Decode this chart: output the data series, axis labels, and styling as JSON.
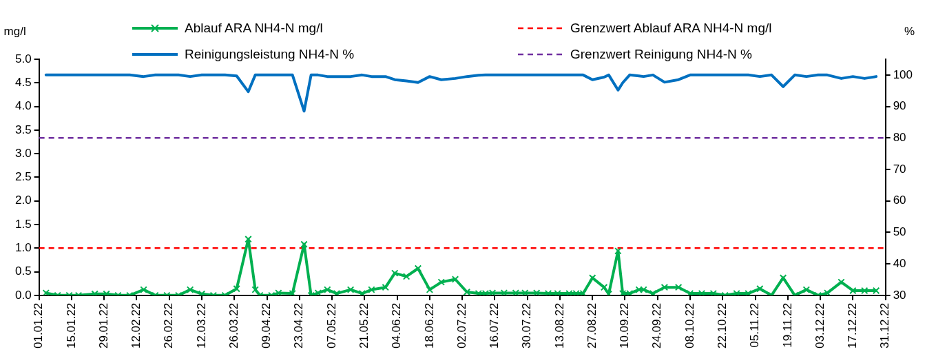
{
  "chart_data": {
    "type": "line",
    "ylabel": "mg/l",
    "y2label": "%",
    "x": [
      "--01-04",
      "--01-09",
      "--01-14",
      "--01-18",
      "--01-25",
      "--01-30",
      "--02-04",
      "--02-09",
      "--02-15",
      "--02-20",
      "--02-25",
      "--03-02",
      "--03-07",
      "--03-12",
      "--03-17",
      "--03-22",
      "--03-27",
      "--04-01",
      "--04-04",
      "--04-06",
      "--04-11",
      "--04-14",
      "--04-20",
      "--04-25",
      "--04-28",
      "--05-01",
      "--05-05",
      "--05-09",
      "--05-15",
      "--05-20",
      "--05-24",
      "--05-30",
      "--06-03",
      "--06-08",
      "--06-13",
      "--06-18",
      "--06-23",
      "--06-29",
      "--07-04",
      "--07-09",
      "--07-12",
      "--07-15",
      "--07-20",
      "--07-25",
      "--07-29",
      "--08-03",
      "--08-08",
      "--08-12",
      "--08-17",
      "--08-20",
      "--08-23",
      "--08-27",
      "--09-01",
      "--09-03",
      "--09-07",
      "--09-09",
      "--09-12",
      "--09-16",
      "--09-18",
      "--09-22",
      "--09-27",
      "--10-03",
      "--10-08",
      "--10-13",
      "--10-18",
      "--10-23",
      "--10-28",
      "--11-02",
      "--11-07",
      "--11-12",
      "--11-17",
      "--11-22",
      "--11-27",
      "--12-02",
      "--12-06",
      "--12-12",
      "--12-17",
      "--12-22",
      "--12-27"
    ],
    "series": [
      {
        "name": "Ablauf ARA NH4-N mg/l",
        "color": "#00b050",
        "marker": "cross",
        "values": [
          0.05,
          0.0,
          0.0,
          0.0,
          0.03,
          0.03,
          0.0,
          0.0,
          0.12,
          0.0,
          0.0,
          0.0,
          0.12,
          0.03,
          0.0,
          0.0,
          0.14,
          1.19,
          0.12,
          0.0,
          0.0,
          0.05,
          0.04,
          1.08,
          0.0,
          0.05,
          0.12,
          0.04,
          0.12,
          0.04,
          0.12,
          0.17,
          0.47,
          0.4,
          0.57,
          0.12,
          0.28,
          0.34,
          0.07,
          0.04,
          0.04,
          0.05,
          0.05,
          0.05,
          0.05,
          0.05,
          0.04,
          0.04,
          0.04,
          0.04,
          0.04,
          0.37,
          0.17,
          0.03,
          0.94,
          0.04,
          0.04,
          0.12,
          0.12,
          0.04,
          0.17,
          0.17,
          0.04,
          0.04,
          0.04,
          0.0,
          0.04,
          0.04,
          0.14,
          0.0,
          0.37,
          0.0,
          0.12,
          0.0,
          0.05,
          0.28,
          0.1,
          0.1,
          0.1
        ]
      },
      {
        "name": "Reinigungsleistung NH4-N %",
        "color": "#0070c0",
        "axis": "y2",
        "marker": "none",
        "values": [
          100,
          100,
          100,
          100,
          100,
          100,
          100,
          100,
          99.5,
          100,
          100,
          100,
          99.5,
          100,
          100,
          100,
          99.7,
          94.7,
          100,
          100,
          100,
          100,
          100,
          88.5,
          100,
          100,
          99.5,
          99.5,
          99.5,
          100,
          99.5,
          99.5,
          98.5,
          98.1,
          97.6,
          99.5,
          98.5,
          98.9,
          99.5,
          99.9,
          100,
          100,
          100,
          100,
          100,
          100,
          100,
          100,
          100,
          100,
          100,
          98.5,
          99.3,
          100,
          95.2,
          97.5,
          100,
          99.7,
          99.5,
          100,
          97.7,
          98.5,
          100,
          100,
          100,
          100,
          100,
          100,
          99.5,
          100,
          96.3,
          100,
          99.5,
          100,
          100,
          98.9,
          99.5,
          98.9,
          99.5
        ]
      }
    ],
    "xlim": [
      "--01-01",
      "--12-31"
    ],
    "xticks": [
      {
        "value": "--01-01",
        "label": "01.01.22"
      },
      {
        "value": "--01-15",
        "label": "15.01.22"
      },
      {
        "value": "--01-29",
        "label": "29.01.22"
      },
      {
        "value": "--02-12",
        "label": "12.02.22"
      },
      {
        "value": "--02-26",
        "label": "26.02.22"
      },
      {
        "value": "--03-12",
        "label": "12.03.22"
      },
      {
        "value": "--03-26",
        "label": "26.03.22"
      },
      {
        "value": "--04-09",
        "label": "09.04.22"
      },
      {
        "value": "--04-23",
        "label": "23.04.22"
      },
      {
        "value": "--05-07",
        "label": "07.05.22"
      },
      {
        "value": "--05-21",
        "label": "21.05.22"
      },
      {
        "value": "--06-04",
        "label": "04.06.22"
      },
      {
        "value": "--06-18",
        "label": "18.06.22"
      },
      {
        "value": "--07-02",
        "label": "02.07.22"
      },
      {
        "value": "--07-16",
        "label": "16.07.22"
      },
      {
        "value": "--07-30",
        "label": "30.07.22"
      },
      {
        "value": "--08-13",
        "label": "13.08.22"
      },
      {
        "value": "--08-27",
        "label": "27.08.22"
      },
      {
        "value": "--09-10",
        "label": "10.09.22"
      },
      {
        "value": "--09-24",
        "label": "24.09.22"
      },
      {
        "value": "--10-08",
        "label": "08.10.22"
      },
      {
        "value": "--10-22",
        "label": "22.10.22"
      },
      {
        "value": "--11-05",
        "label": "05.11.22"
      },
      {
        "value": "--11-19",
        "label": "19.11.22"
      },
      {
        "value": "--12-03",
        "label": "03.12.22"
      },
      {
        "value": "--12-17",
        "label": "17.12.22"
      },
      {
        "value": "--12-31",
        "label": "31.12.22"
      }
    ],
    "ylim": [
      0,
      5
    ],
    "yticks": [
      {
        "value": 0,
        "label": "0.0"
      },
      {
        "value": 0.5,
        "label": "0.5"
      },
      {
        "value": 1,
        "label": "1.0"
      },
      {
        "value": 1.5,
        "label": "1.5"
      },
      {
        "value": 2,
        "label": "2.0"
      },
      {
        "value": 2.5,
        "label": "2.5"
      },
      {
        "value": 3,
        "label": "3.0"
      },
      {
        "value": 3.5,
        "label": "3.5"
      },
      {
        "value": 4,
        "label": "4.0"
      },
      {
        "value": 4.5,
        "label": "4.5"
      },
      {
        "value": 5,
        "label": "5.0"
      }
    ],
    "y2lim": [
      30,
      105
    ],
    "y2ticks": [
      30,
      40,
      50,
      60,
      70,
      80,
      90,
      100
    ],
    "ref_lines": [
      {
        "axis": "y",
        "value": 1,
        "label": "Grenzwert Ablauf ARA NH4-N mg/l",
        "color": "#ff0000",
        "line_style": "dashed"
      },
      {
        "axis": "y2",
        "value": 80,
        "label": "Grenzwert Reinigung NH4-N %",
        "color": "#7030a0",
        "line_style": "dashed"
      }
    ],
    "grid": false,
    "legend": "top"
  }
}
